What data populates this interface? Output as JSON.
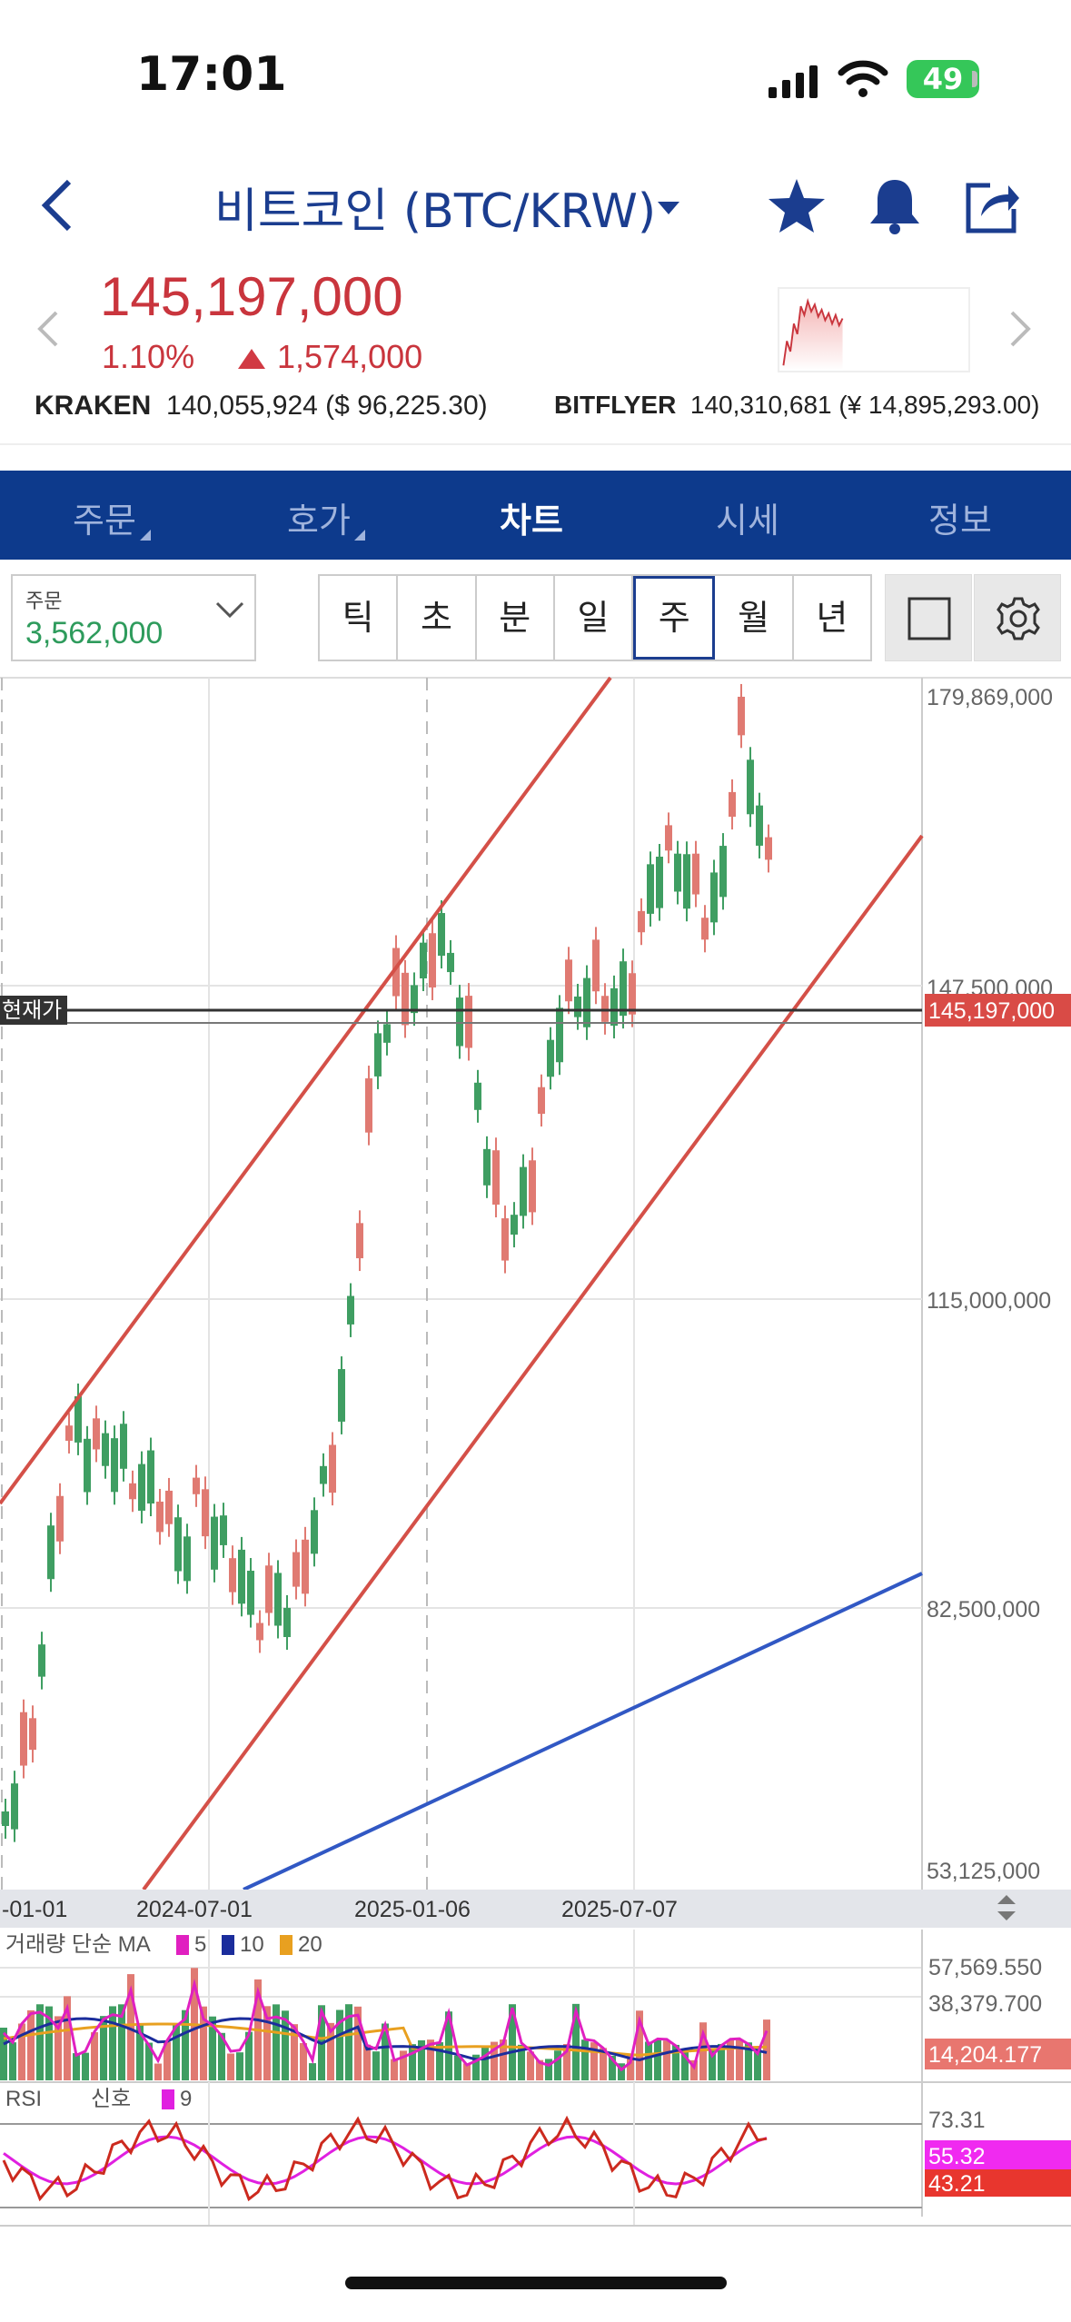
{
  "status_bar": {
    "time": "17:01",
    "battery": "49"
  },
  "header": {
    "title": "비트코인 (BTC/KRW)"
  },
  "price": {
    "current": "145,197,000",
    "change_pct": "1.10%",
    "change_amount": "1,574,000"
  },
  "exchanges": [
    {
      "name": "KRAKEN",
      "value": "140,055,924 ($ 96,225.30)"
    },
    {
      "name": "BITFLYER",
      "value": "140,310,681 (¥ 14,895,293.00)"
    }
  ],
  "tabs": [
    {
      "label": "주문",
      "active": false
    },
    {
      "label": "호가",
      "active": false
    },
    {
      "label": "차트",
      "active": true
    },
    {
      "label": "시세",
      "active": false
    },
    {
      "label": "정보",
      "active": false
    }
  ],
  "order": {
    "label": "주문",
    "value": "3,562,000"
  },
  "periods": [
    "틱",
    "초",
    "분",
    "일",
    "주",
    "월",
    "년"
  ],
  "selected_period": "주",
  "chart_data": {
    "type": "candlestick",
    "y_ticks": [
      "179,869,000",
      "147,500,000",
      "115,000,000",
      "82,500,000",
      "53,125,000"
    ],
    "x_ticks": [
      "-01-01",
      "2024-07-01",
      "2025-01-06",
      "2025-07-07"
    ],
    "current_price_label": "현재가",
    "current_price": "145,197,000",
    "volume_panel": {
      "label": "거래량 단순 MA",
      "ma_periods": [
        "5",
        "10",
        "20"
      ],
      "ma_colors": [
        "#e020c0",
        "#1b2d9c",
        "#e8a020"
      ],
      "ticks": [
        "57,569.550",
        "38,379.700"
      ],
      "last_value": "14,204.177"
    },
    "rsi_panel": {
      "label": "RSI",
      "signal_label": "신호",
      "signal_period": "9",
      "top_tick": "73.31",
      "signal_value": "55.32",
      "rsi_value": "43.21"
    }
  }
}
